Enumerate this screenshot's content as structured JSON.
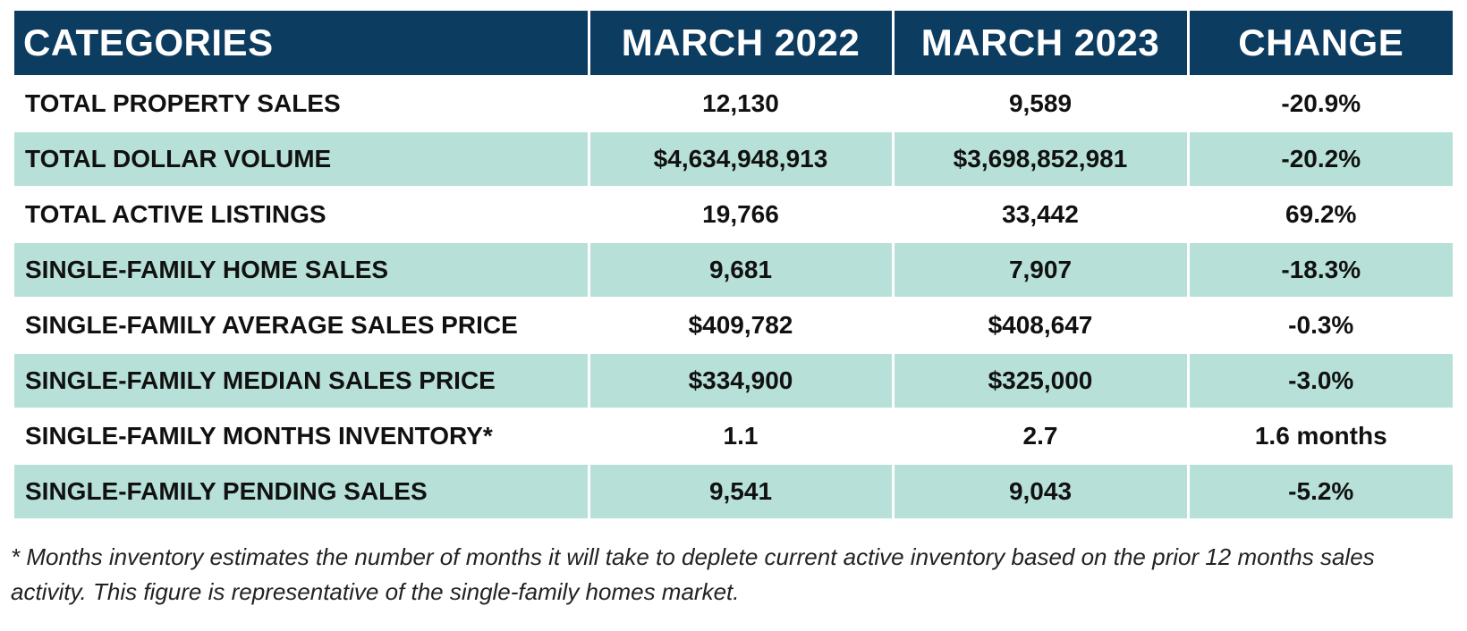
{
  "chart_data": {
    "type": "table",
    "columns": [
      "CATEGORIES",
      "MARCH 2022",
      "MARCH 2023",
      "CHANGE"
    ],
    "rows": [
      [
        "TOTAL PROPERTY SALES",
        "12,130",
        "9,589",
        "-20.9%"
      ],
      [
        "TOTAL DOLLAR VOLUME",
        "$4,634,948,913",
        "$3,698,852,981",
        "-20.2%"
      ],
      [
        "TOTAL ACTIVE LISTINGS",
        "19,766",
        "33,442",
        "69.2%"
      ],
      [
        "SINGLE-FAMILY HOME SALES",
        "9,681",
        "7,907",
        "-18.3%"
      ],
      [
        "SINGLE-FAMILY AVERAGE SALES PRICE",
        "$409,782",
        "$408,647",
        "-0.3%"
      ],
      [
        "SINGLE-FAMILY MEDIAN SALES PRICE",
        "$334,900",
        "$325,000",
        "-3.0%"
      ],
      [
        "SINGLE-FAMILY MONTHS INVENTORY*",
        "1.1",
        "2.7",
        "1.6 months"
      ],
      [
        "SINGLE-FAMILY PENDING SALES",
        "9,541",
        "9,043",
        "-5.2%"
      ]
    ],
    "footnote": "* Months inventory estimates the number of months it will take to deplete current active inventory based on the prior 12 months sales activity. This figure is representative of the single-family homes market."
  },
  "colors": {
    "header_bg": "#0d3c61",
    "header_text": "#ffffff",
    "shaded_row_bg": "#b7e1d8",
    "plain_row_bg": "#ffffff",
    "body_text": "#111111"
  }
}
